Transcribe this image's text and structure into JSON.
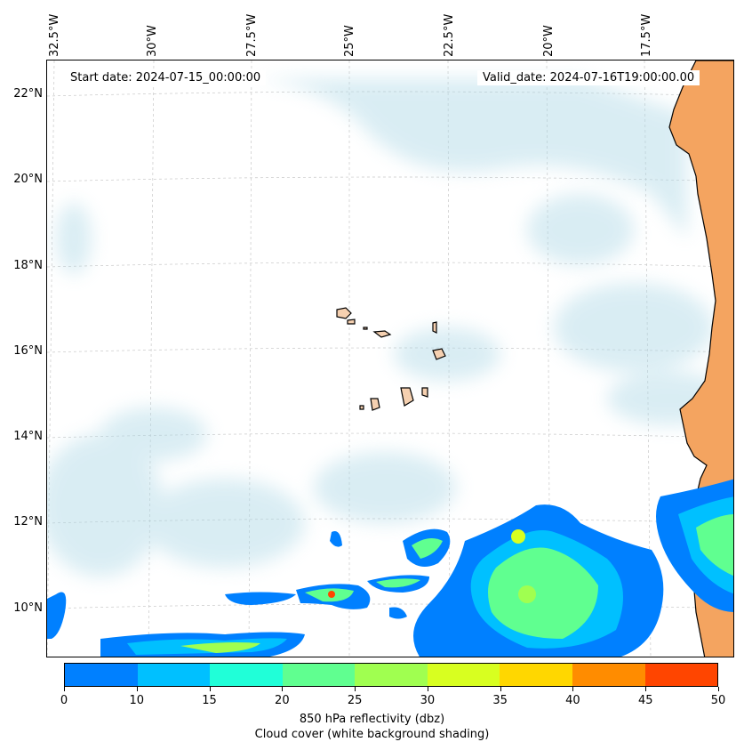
{
  "map": {
    "start_date": "Start date: 2024-07-15_00:00:00",
    "valid_date": "Valid_date: 2024-07-16T19:00:00.00",
    "lon_labels": [
      "32.5°W",
      "30°W",
      "27.5°W",
      "25°W",
      "22.5°W",
      "20°W",
      "17.5°W"
    ],
    "lat_labels": [
      "22°N",
      "20°N",
      "18°N",
      "16°N",
      "14°N",
      "12°N",
      "10°N"
    ],
    "land_color": "#f4a460",
    "ocean_color": "#ffffff",
    "cloud_color": "#add8e6"
  },
  "colorbar": {
    "ticks": [
      "0",
      "5",
      "10",
      "15",
      "20",
      "25",
      "30",
      "35",
      "40",
      "45",
      "50"
    ],
    "colors": [
      "#0080ff",
      "#00c0ff",
      "#20ffd8",
      "#60ff90",
      "#a0ff50",
      "#d8ff20",
      "#ffd700",
      "#ff8c00",
      "#ff4500"
    ],
    "label_line1": "850 hPa reflectivity (dbz)",
    "label_line2": "Cloud cover (white background shading)"
  }
}
